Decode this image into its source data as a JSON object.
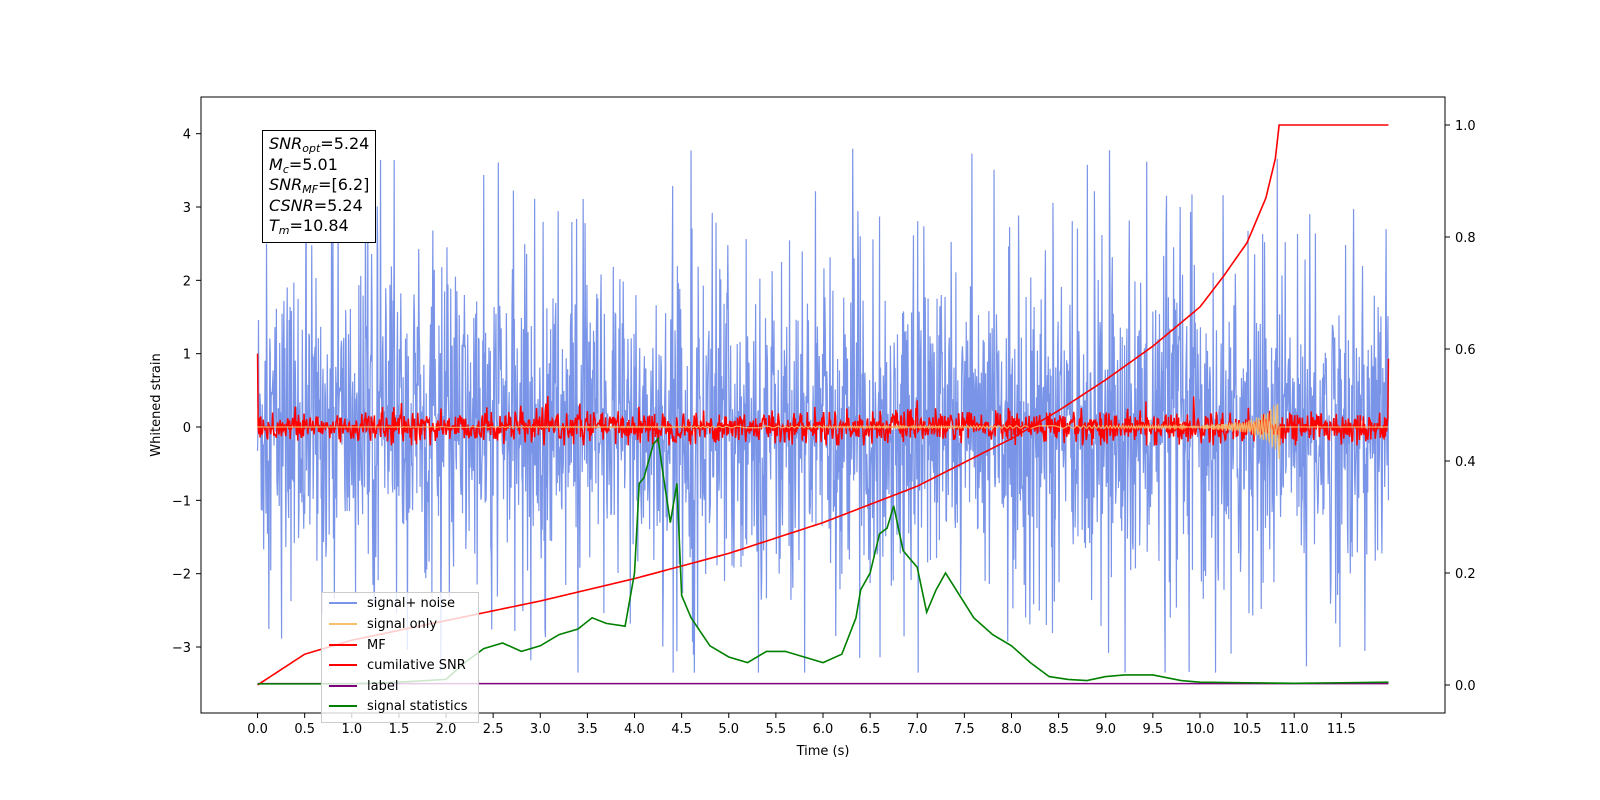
{
  "chart_data": {
    "type": "line",
    "title": "",
    "xlabel": "Time (s)",
    "ylabel": "Whitened strain",
    "xlim": [
      -0.6,
      12.6
    ],
    "ylim_left": [
      -3.9,
      4.5
    ],
    "ylim_right": [
      -0.05,
      1.05
    ],
    "x_ticks": [
      "0.0",
      "0.5",
      "1.0",
      "1.5",
      "2.0",
      "2.5",
      "3.0",
      "3.5",
      "4.0",
      "4.5",
      "5.0",
      "5.5",
      "6.0",
      "6.5",
      "7.0",
      "7.5",
      "8.0",
      "8.5",
      "9.0",
      "9.5",
      "10.0",
      "10.5",
      "11.0",
      "11.5"
    ],
    "y_ticks_left": [
      "−3",
      "−2",
      "−1",
      "0",
      "1",
      "2",
      "3",
      "4"
    ],
    "y_ticks_right": [
      "0.0",
      "0.2",
      "0.4",
      "0.6",
      "0.8",
      "1.0"
    ],
    "grid": false,
    "legend_position": "lower-left",
    "annotation": [
      {
        "base": "SNR",
        "sub": "opt",
        "value": "=5.24"
      },
      {
        "base": "M",
        "sub": "c",
        "value": "=5.01"
      },
      {
        "base": "SNR",
        "sub": "MF",
        "value": "=[6.2]"
      },
      {
        "base": "CSNR",
        "sub": "",
        "value": "=5.24"
      },
      {
        "base": "T",
        "sub": "m",
        "value": "=10.84"
      }
    ],
    "series": [
      {
        "name": "signal+ noise",
        "color": "#7a95e8",
        "axis": "left",
        "x_range": [
          0.0,
          12.0
        ],
        "envelope_upper": 2.5,
        "envelope_lower": -2.7,
        "peak_max": 4.17,
        "peak_min": -3.35
      },
      {
        "name": "signal only",
        "color": "#f5c06b",
        "axis": "left",
        "x_range": [
          0.0,
          12.0
        ],
        "x": [
          0.0,
          10.0,
          10.5,
          10.7,
          10.8,
          10.84,
          12.0
        ],
        "amplitude": [
          0.0,
          0.02,
          0.08,
          0.2,
          0.32,
          0.45,
          0.0
        ]
      },
      {
        "name": "MF",
        "color": "#ff0000",
        "axis": "left",
        "x_range": [
          0.0,
          12.0
        ],
        "center": 0.0,
        "noise_amplitude": 0.2,
        "endpoints": [
          1.0,
          0.93
        ]
      },
      {
        "name": "cumilative SNR",
        "color": "#ff0000",
        "axis": "right",
        "x": [
          0.0,
          0.5,
          1.0,
          2.0,
          3.0,
          4.0,
          5.0,
          6.0,
          7.0,
          8.0,
          8.5,
          9.0,
          9.5,
          10.0,
          10.25,
          10.5,
          10.7,
          10.8,
          10.84,
          11.0,
          11.5,
          12.0
        ],
        "values": [
          0.0,
          0.055,
          0.08,
          0.115,
          0.15,
          0.19,
          0.235,
          0.29,
          0.355,
          0.44,
          0.49,
          0.545,
          0.605,
          0.675,
          0.73,
          0.79,
          0.87,
          0.94,
          1.0,
          1.0,
          1.0,
          1.0
        ]
      },
      {
        "name": "label",
        "color": "#800080",
        "axis": "left",
        "x": [
          0.0,
          12.0
        ],
        "values": [
          -3.5,
          -3.5
        ]
      },
      {
        "name": "signal statistics",
        "color": "#008000",
        "axis": "right",
        "x": [
          0.0,
          0.5,
          1.0,
          1.5,
          2.0,
          2.2,
          2.4,
          2.6,
          2.8,
          3.0,
          3.2,
          3.4,
          3.55,
          3.7,
          3.9,
          4.0,
          4.05,
          4.1,
          4.2,
          4.25,
          4.3,
          4.38,
          4.45,
          4.5,
          4.6,
          4.8,
          5.0,
          5.2,
          5.4,
          5.6,
          5.8,
          6.0,
          6.2,
          6.35,
          6.4,
          6.5,
          6.6,
          6.68,
          6.75,
          6.85,
          7.0,
          7.1,
          7.2,
          7.3,
          7.45,
          7.6,
          7.8,
          8.0,
          8.2,
          8.4,
          8.6,
          8.8,
          9.0,
          9.2,
          9.5,
          9.8,
          10.0,
          10.5,
          11.0,
          11.5,
          12.0
        ],
        "values": [
          0.002,
          0.002,
          0.002,
          0.005,
          0.01,
          0.04,
          0.065,
          0.075,
          0.06,
          0.07,
          0.09,
          0.1,
          0.12,
          0.11,
          0.105,
          0.2,
          0.36,
          0.37,
          0.43,
          0.44,
          0.38,
          0.29,
          0.36,
          0.16,
          0.12,
          0.07,
          0.05,
          0.04,
          0.06,
          0.06,
          0.05,
          0.04,
          0.055,
          0.12,
          0.17,
          0.2,
          0.27,
          0.28,
          0.32,
          0.24,
          0.21,
          0.13,
          0.17,
          0.2,
          0.16,
          0.12,
          0.09,
          0.07,
          0.04,
          0.015,
          0.01,
          0.008,
          0.015,
          0.018,
          0.018,
          0.008,
          0.005,
          0.004,
          0.003,
          0.004,
          0.005
        ]
      }
    ]
  }
}
